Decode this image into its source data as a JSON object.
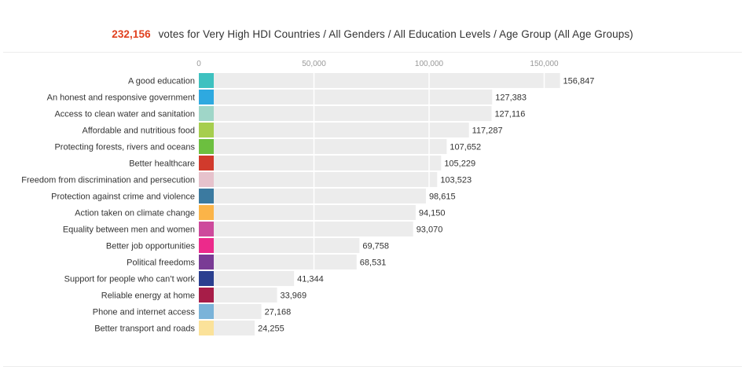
{
  "header": {
    "count": "232,156",
    "rest": "votes for Very High HDI Countries / All Genders / All Education Levels / Age Group (All Age Groups)"
  },
  "chart_data": {
    "type": "bar",
    "orientation": "horizontal",
    "title": "",
    "xlim": [
      0,
      232156
    ],
    "x_ticks": [
      0,
      50000,
      100000,
      150000
    ],
    "x_tick_labels": [
      "0",
      "50,000",
      "100,000",
      "150,000"
    ],
    "grid": true,
    "categories": [
      "A good education",
      "An honest and responsive government",
      "Access to clean water and sanitation",
      "Affordable and nutritious food",
      "Protecting forests, rivers and oceans",
      "Better healthcare",
      "Freedom from discrimination and persecution",
      "Protection against crime and violence",
      "Action taken on climate change",
      "Equality between men and women",
      "Better job opportunities",
      "Political freedoms",
      "Support for people who can’t work",
      "Reliable energy at home",
      "Phone and internet access",
      "Better transport and roads"
    ],
    "values": [
      156847,
      127383,
      127116,
      117287,
      107652,
      105229,
      103523,
      98615,
      94150,
      93070,
      69758,
      68531,
      41344,
      33969,
      27168,
      24255
    ],
    "value_labels": [
      "156,847",
      "127,383",
      "127,116",
      "117,287",
      "107,652",
      "105,229",
      "103,523",
      "98,615",
      "94,150",
      "93,070",
      "69,758",
      "68,531",
      "41,344",
      "33,969",
      "27,168",
      "24,255"
    ],
    "swatch_colors": [
      "#3ec1c0",
      "#2ea9e0",
      "#9fd6c8",
      "#a6ce4e",
      "#6cbf3f",
      "#d13a2c",
      "#e6c2cc",
      "#3b7aa0",
      "#fbb448",
      "#cd4a9c",
      "#ec2a8b",
      "#7a3b95",
      "#2a3f8f",
      "#a71d48",
      "#7ab3d9",
      "#fbe29a"
    ],
    "bar_color": "#ececec"
  }
}
